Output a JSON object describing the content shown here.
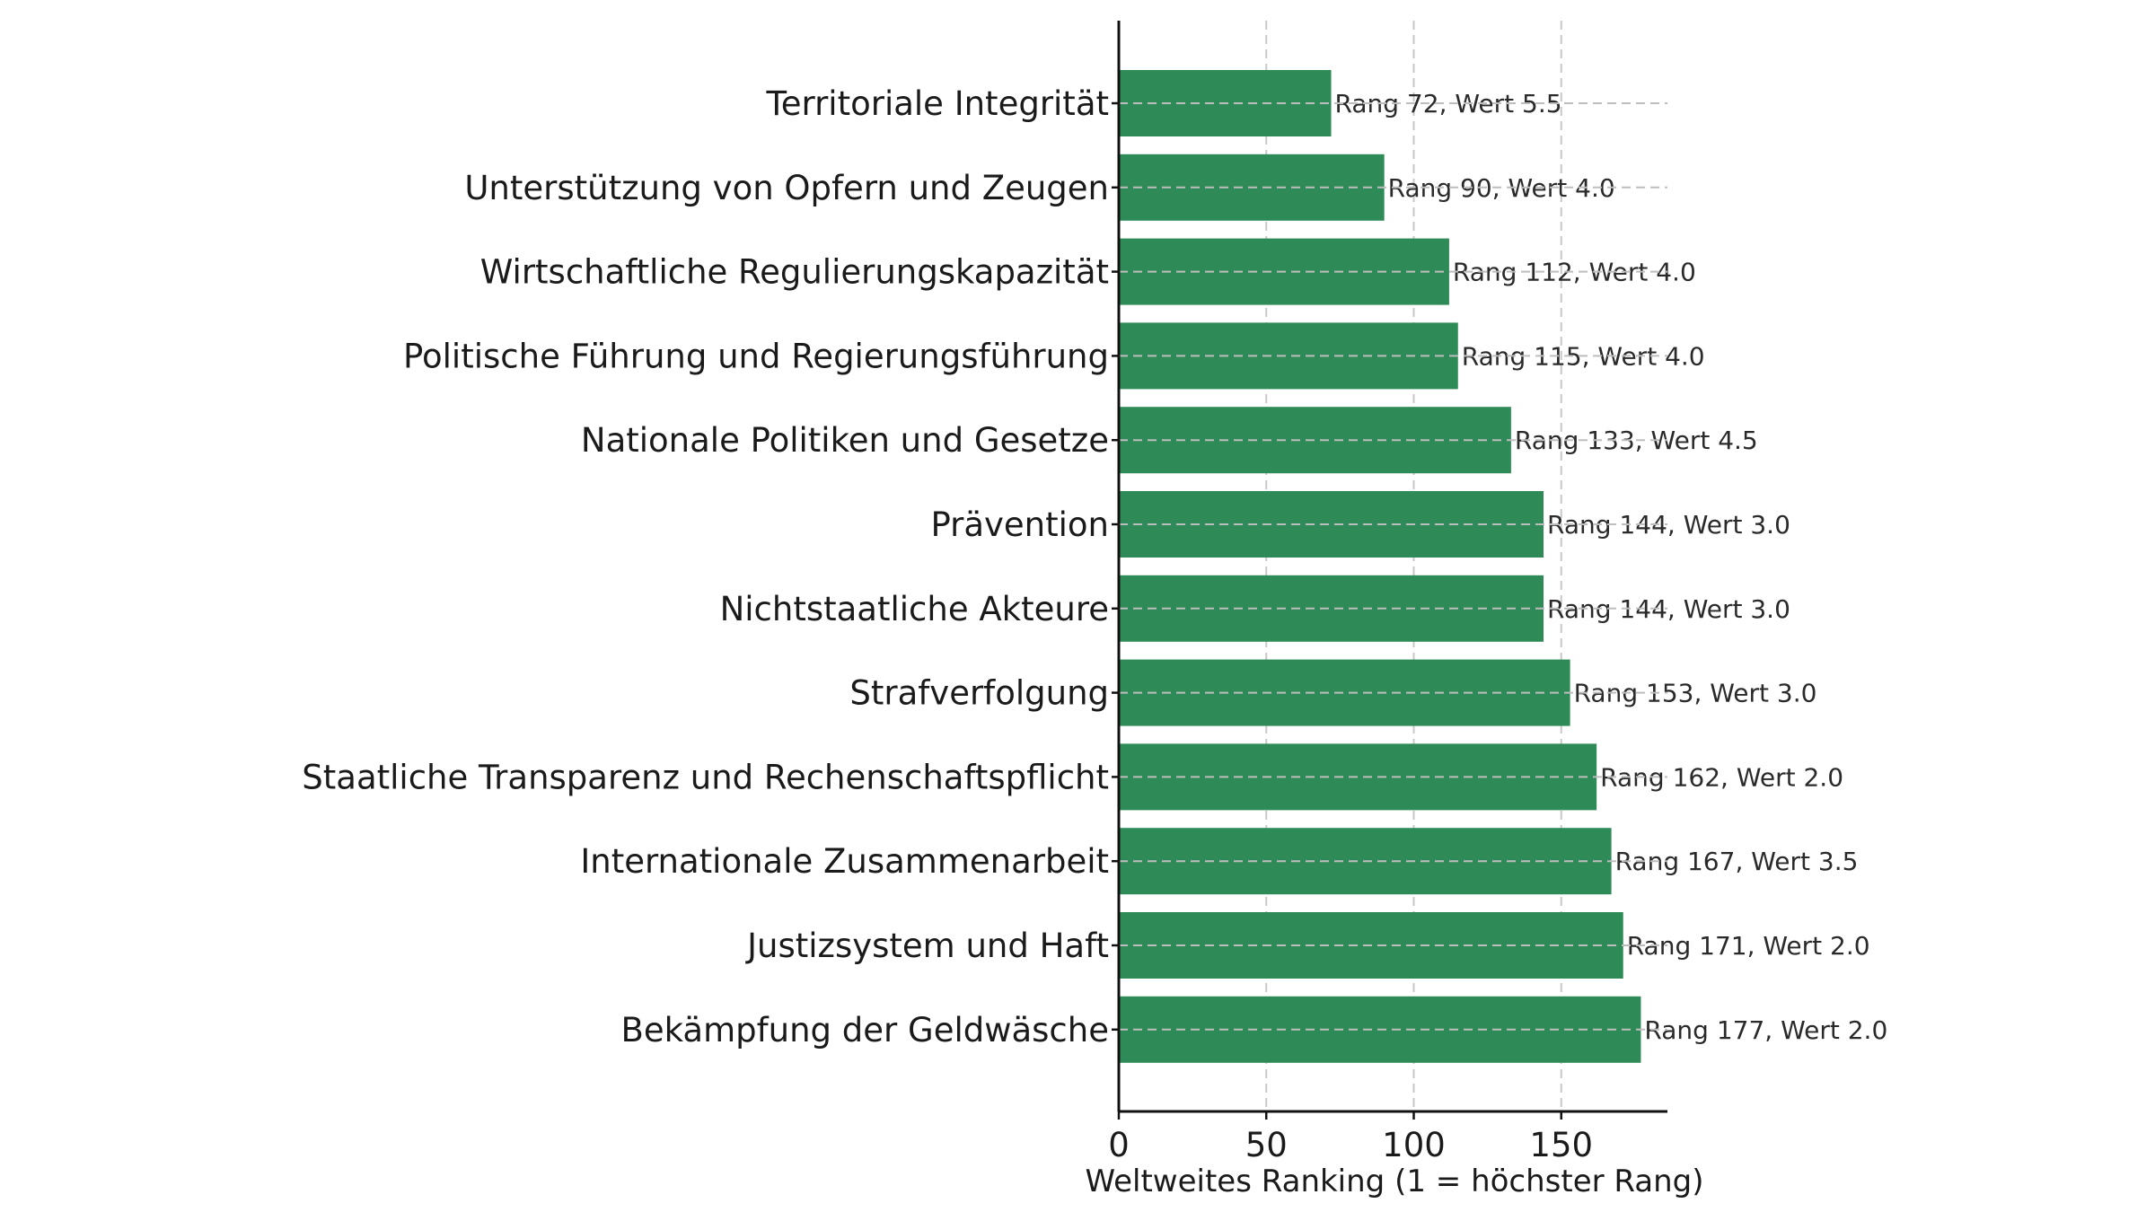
{
  "chart_data": {
    "type": "bar",
    "orientation": "horizontal",
    "title": "",
    "xlabel": "Weltweites Ranking (1 = höchster Rang)",
    "ylabel": "",
    "xlim": [
      0,
      186
    ],
    "xticks": [
      0,
      50,
      100,
      150
    ],
    "grid": true,
    "bar_color": "#2e8b57",
    "categories": [
      "Territoriale Integrität",
      "Unterstützung von Opfern und Zeugen",
      "Wirtschaftliche Regulierungskapazität",
      "Politische Führung und Regierungsführung",
      "Nationale Politiken und Gesetze",
      "Prävention",
      "Nichtstaatliche Akteure",
      "Strafverfolgung",
      "Staatliche Transparenz und Rechenschaftspflicht",
      "Internationale Zusammenarbeit",
      "Justizsystem und Haft",
      "Bekämpfung der Geldwäsche"
    ],
    "values": [
      72,
      90,
      112,
      115,
      133,
      144,
      144,
      153,
      162,
      167,
      171,
      177
    ],
    "data_labels": [
      "Rang 72, Wert 5.5",
      "Rang 90, Wert 4.0",
      "Rang 112, Wert 4.0",
      "Rang 115, Wert 4.0",
      "Rang 133, Wert 4.5",
      "Rang 144, Wert 3.0",
      "Rang 144, Wert 3.0",
      "Rang 153, Wert 3.0",
      "Rang 162, Wert 2.0",
      "Rang 167, Wert 3.5",
      "Rang 171, Wert 2.0",
      "Rang 177, Wert 2.0"
    ]
  }
}
